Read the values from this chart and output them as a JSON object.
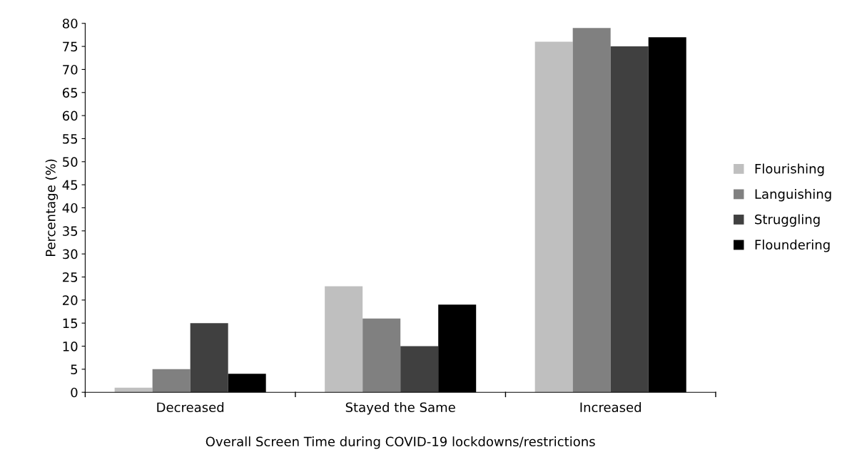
{
  "chart_data": {
    "type": "bar",
    "xlabel": "Overall Screen Time during COVID-19 lockdowns/restrictions",
    "ylabel": "Percentage (%)",
    "categories": [
      "Decreased",
      "Stayed the Same",
      "Increased"
    ],
    "series": [
      {
        "name": "Flourishing",
        "color": "#bfbfbf",
        "values": [
          1,
          23,
          76
        ]
      },
      {
        "name": "Languishing",
        "color": "#808080",
        "values": [
          5,
          16,
          79
        ]
      },
      {
        "name": "Struggling",
        "color": "#404040",
        "values": [
          15,
          10,
          75
        ]
      },
      {
        "name": "Floundering",
        "color": "#000000",
        "values": [
          4,
          19,
          77
        ]
      }
    ],
    "ylim": [
      0,
      80
    ],
    "yticks": [
      0,
      5,
      10,
      15,
      20,
      25,
      30,
      35,
      40,
      45,
      50,
      55,
      60,
      65,
      70,
      75,
      80
    ],
    "grid": false,
    "legend": "right"
  }
}
